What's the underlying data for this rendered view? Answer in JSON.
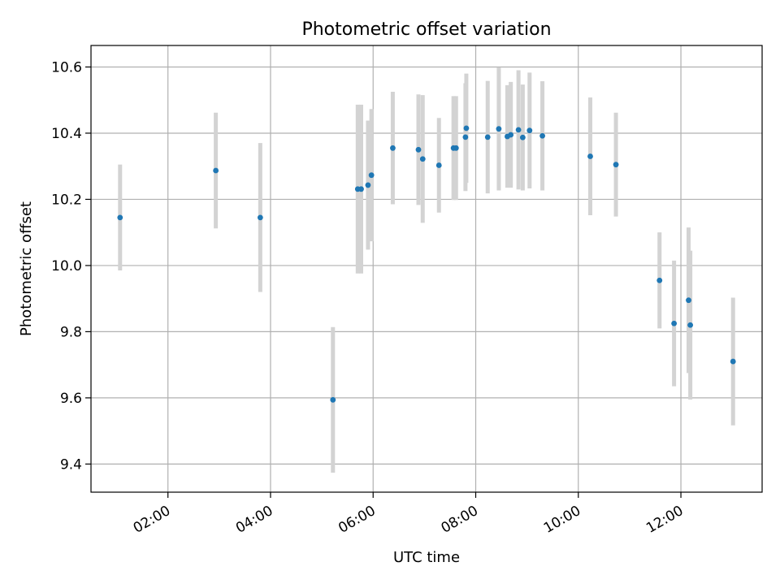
{
  "chart_data": {
    "type": "scatter",
    "title": "Photometric offset variation",
    "xlabel": "UTC time",
    "ylabel": "Photometric offset",
    "x_unit": "hours UTC",
    "xlim": [
      "00:30",
      "13:35"
    ],
    "ylim": [
      9.315,
      10.665
    ],
    "x_ticks": [
      "02:00",
      "04:00",
      "06:00",
      "08:00",
      "10:00",
      "12:00"
    ],
    "y_ticks": [
      "9.4",
      "9.6",
      "9.8",
      "10.0",
      "10.2",
      "10.4",
      "10.6"
    ],
    "grid": true,
    "series": [
      {
        "marker_color": "#1f77b4",
        "errorbar_color": "#d3d3d3",
        "points": [
          {
            "t": "01:04",
            "y": 10.145,
            "err": 0.16
          },
          {
            "t": "02:56",
            "y": 10.287,
            "err": 0.175
          },
          {
            "t": "03:48",
            "y": 10.145,
            "err": 0.225
          },
          {
            "t": "05:13",
            "y": 9.594,
            "err": 0.22
          },
          {
            "t": "05:42",
            "y": 10.231,
            "err": 0.255
          },
          {
            "t": "05:46",
            "y": 10.231,
            "err": 0.255
          },
          {
            "t": "05:54",
            "y": 10.243,
            "err": 0.195
          },
          {
            "t": "05:58",
            "y": 10.273,
            "err": 0.2
          },
          {
            "t": "06:23",
            "y": 10.355,
            "err": 0.17
          },
          {
            "t": "06:53",
            "y": 10.35,
            "err": 0.167
          },
          {
            "t": "06:58",
            "y": 10.322,
            "err": 0.193
          },
          {
            "t": "07:17",
            "y": 10.303,
            "err": 0.143
          },
          {
            "t": "07:34",
            "y": 10.355,
            "err": 0.157
          },
          {
            "t": "07:37",
            "y": 10.355,
            "err": 0.157
          },
          {
            "t": "07:48",
            "y": 10.388,
            "err": 0.163
          },
          {
            "t": "07:49",
            "y": 10.415,
            "err": 0.165
          },
          {
            "t": "08:14",
            "y": 10.388,
            "err": 0.17
          },
          {
            "t": "08:27",
            "y": 10.413,
            "err": 0.186
          },
          {
            "t": "08:37",
            "y": 10.39,
            "err": 0.155
          },
          {
            "t": "08:41",
            "y": 10.395,
            "err": 0.16
          },
          {
            "t": "08:50",
            "y": 10.41,
            "err": 0.18
          },
          {
            "t": "08:55",
            "y": 10.387,
            "err": 0.16
          },
          {
            "t": "09:03",
            "y": 10.408,
            "err": 0.175
          },
          {
            "t": "09:18",
            "y": 10.392,
            "err": 0.165
          },
          {
            "t": "10:14",
            "y": 10.33,
            "err": 0.178
          },
          {
            "t": "10:44",
            "y": 10.305,
            "err": 0.157
          },
          {
            "t": "11:35",
            "y": 9.955,
            "err": 0.145
          },
          {
            "t": "11:52",
            "y": 9.825,
            "err": 0.19
          },
          {
            "t": "12:09",
            "y": 9.895,
            "err": 0.22
          },
          {
            "t": "12:11",
            "y": 9.82,
            "err": 0.225
          },
          {
            "t": "13:01",
            "y": 9.71,
            "err": 0.193
          }
        ]
      }
    ]
  }
}
